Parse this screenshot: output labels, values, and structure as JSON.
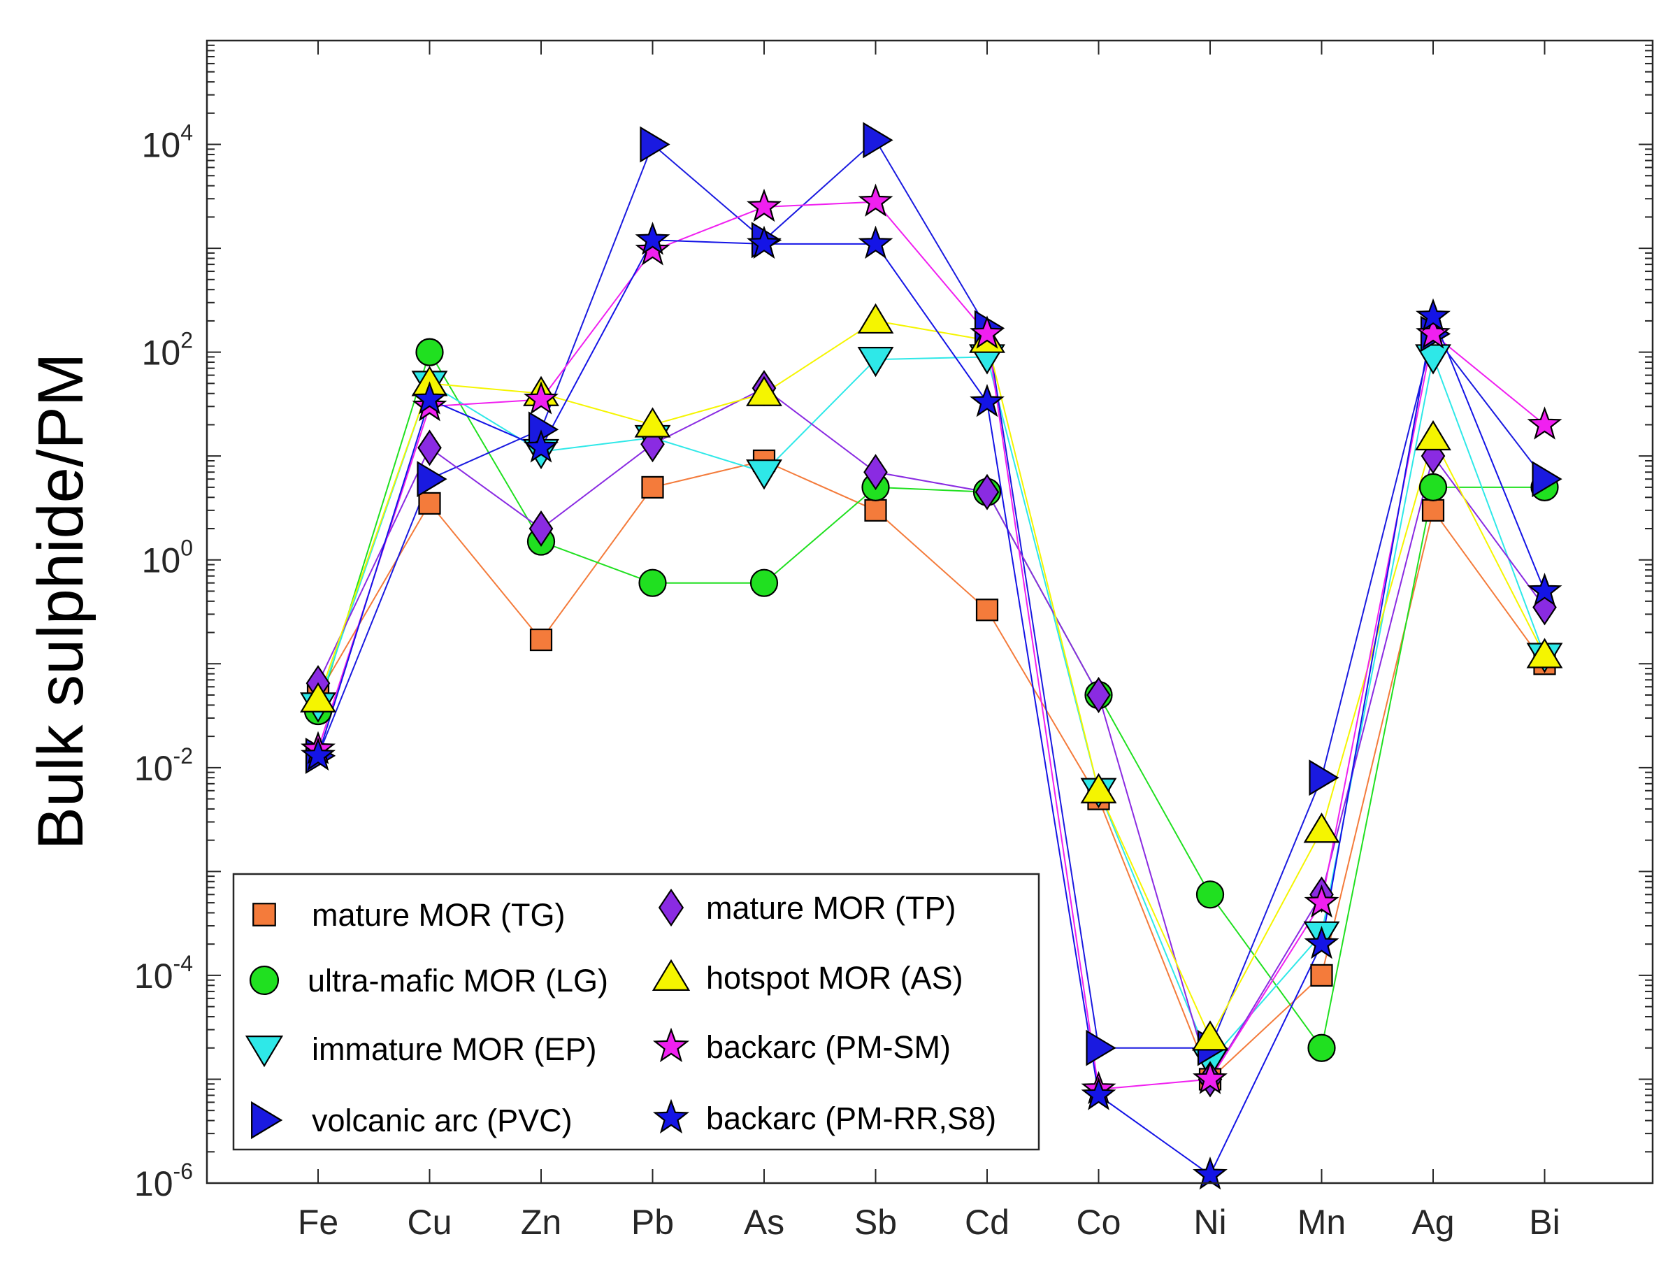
{
  "chart_data": {
    "type": "line",
    "title": "",
    "xlabel": "",
    "ylabel": "Bulk sulphide/PM",
    "yscale": "log",
    "ylim": [
      1e-06,
      100000
    ],
    "categories": [
      "Fe",
      "Cu",
      "Zn",
      "Pb",
      "As",
      "Sb",
      "Cd",
      "Co",
      "Ni",
      "Mn",
      "Ag",
      "Bi"
    ],
    "ytick_labels": [
      {
        "value": 1e-06,
        "base": "10",
        "exp": "-6"
      },
      {
        "value": 0.0001,
        "base": "10",
        "exp": "-4"
      },
      {
        "value": 0.01,
        "base": "10",
        "exp": "-2"
      },
      {
        "value": 1,
        "base": "10",
        "exp": "0"
      },
      {
        "value": 100,
        "base": "10",
        "exp": "2"
      },
      {
        "value": 10000,
        "base": "10",
        "exp": "4"
      }
    ],
    "legend_location": "bottom-left",
    "series": [
      {
        "name": "mature MOR (TG)",
        "marker": "square",
        "color": "#f47b3b",
        "values": [
          0.05,
          3.5,
          0.17,
          5,
          9,
          3,
          0.33,
          0.005,
          1e-05,
          0.0001,
          3,
          0.1
        ]
      },
      {
        "name": "ultra-mafic MOR (LG)",
        "marker": "circle",
        "color": "#20e020",
        "values": [
          0.035,
          100,
          1.5,
          0.6,
          0.6,
          5,
          4.5,
          0.05,
          0.0006,
          2e-05,
          5,
          5
        ]
      },
      {
        "name": "immature MOR (EP)",
        "marker": "triangle-down",
        "color": "#2ee8e8",
        "values": [
          0.04,
          50,
          11,
          15,
          7,
          85,
          90,
          0.006,
          1.5e-05,
          0.00025,
          90,
          0.12
        ]
      },
      {
        "name": "volcanic arc (PVC)",
        "marker": "triangle-right",
        "color": "#1a1ae0",
        "values": [
          0.013,
          6,
          18,
          10000,
          1200,
          11000,
          170,
          2e-05,
          2e-05,
          0.008,
          150,
          6
        ]
      },
      {
        "name": "mature MOR (TP)",
        "marker": "diamond",
        "color": "#8a2be2",
        "values": [
          0.065,
          12,
          2,
          13,
          45,
          7,
          4.5,
          0.05,
          1e-05,
          0.0006,
          10,
          0.35
        ]
      },
      {
        "name": "hotspot MOR (AS)",
        "marker": "triangle-up",
        "color": "#f5f500",
        "values": [
          0.045,
          50,
          40,
          20,
          40,
          200,
          130,
          0.006,
          2.5e-05,
          0.0025,
          15,
          0.12
        ]
      },
      {
        "name": "backarc (PM-SM)",
        "marker": "star",
        "color": "#f020f0",
        "values": [
          0.015,
          30,
          35,
          950,
          2500,
          2800,
          150,
          8e-06,
          1e-05,
          0.0005,
          150,
          20
        ]
      },
      {
        "name": "backarc (PM-RR,S8)",
        "marker": "star",
        "color": "#1414e6",
        "values": [
          0.013,
          35,
          12,
          1200,
          1100,
          1100,
          33,
          7e-06,
          1.2e-06,
          0.0002,
          220,
          0.5
        ]
      }
    ]
  }
}
